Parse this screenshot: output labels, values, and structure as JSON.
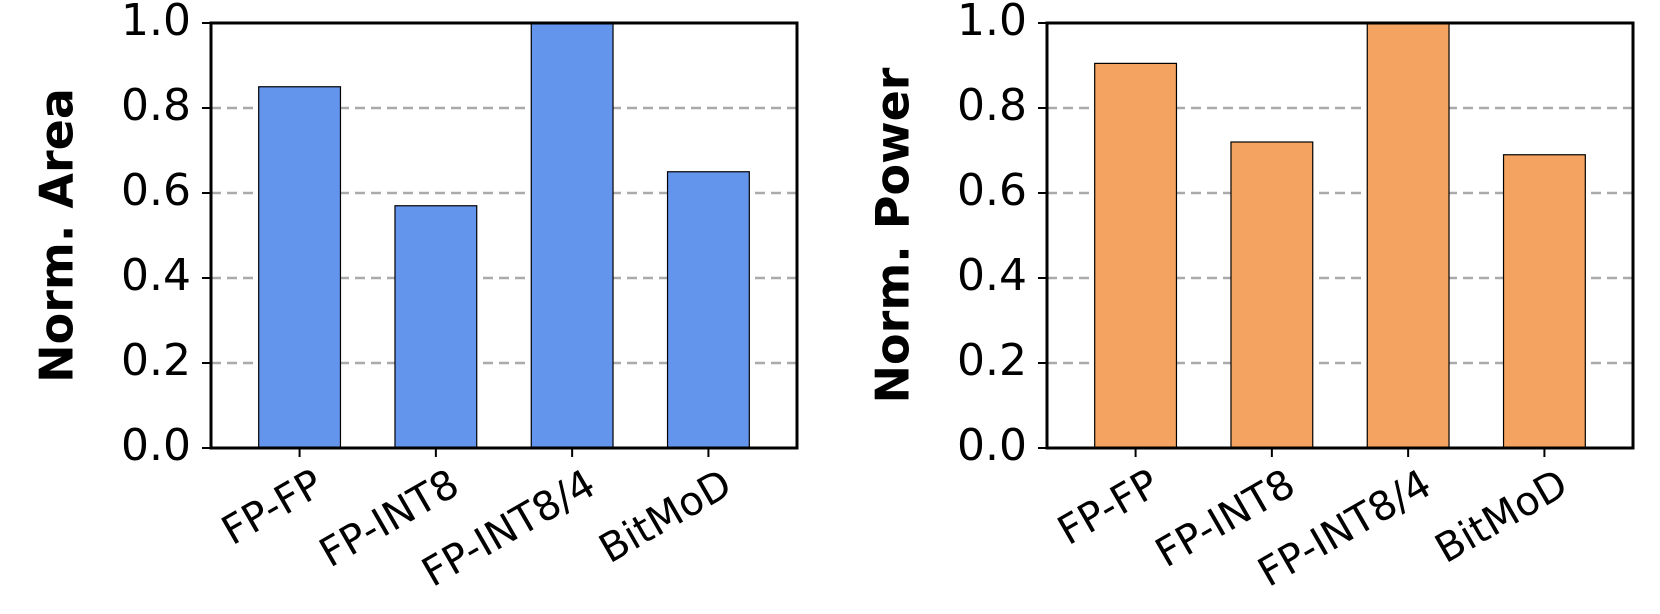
{
  "chart_data": [
    {
      "type": "bar",
      "ylabel": "Norm. Area",
      "categories": [
        "FP-FP",
        "FP-INT8",
        "FP-INT8/4",
        "BitMoD"
      ],
      "values": [
        0.85,
        0.57,
        1.0,
        0.65
      ],
      "color": "#6495ed",
      "ylim": [
        0,
        1
      ],
      "yticks": [
        {
          "value": 0,
          "label": "0.0"
        },
        0.2,
        0.4,
        0.6,
        0.8,
        {
          "value": 1,
          "label": "1.0"
        }
      ],
      "grid": true
    },
    {
      "type": "bar",
      "ylabel": "Norm. Power",
      "categories": [
        "FP-FP",
        "FP-INT8",
        "FP-INT8/4",
        "BitMoD"
      ],
      "values": [
        0.905,
        0.72,
        1.0,
        0.69
      ],
      "color": "#f4a460",
      "ylim": [
        0,
        1
      ],
      "yticks": [
        {
          "value": 0,
          "label": "0.0"
        },
        0.2,
        0.4,
        0.6,
        0.8,
        {
          "value": 1,
          "label": "1.0"
        }
      ],
      "grid": true
    }
  ]
}
